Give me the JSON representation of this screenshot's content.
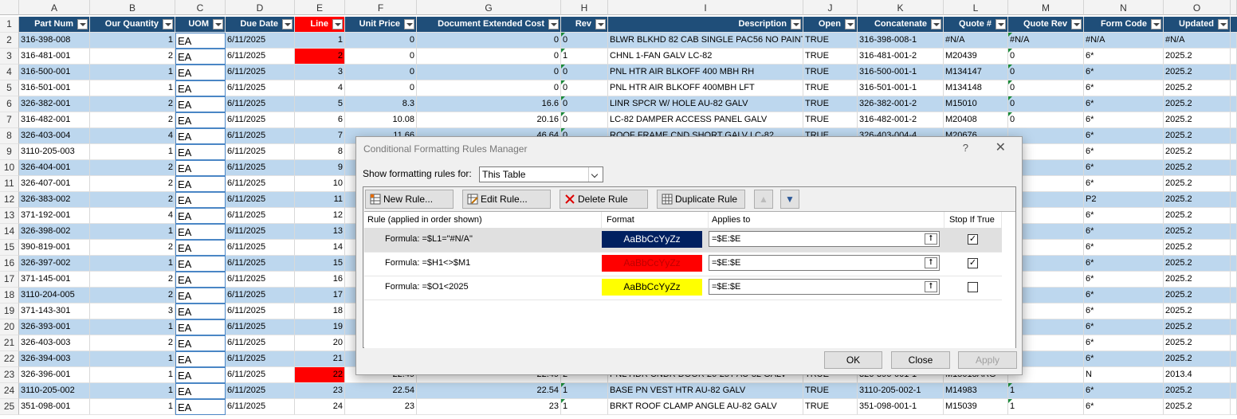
{
  "columns": [
    "A",
    "B",
    "C",
    "D",
    "E",
    "F",
    "G",
    "H",
    "I",
    "J",
    "K",
    "L",
    "M",
    "N",
    "O"
  ],
  "header_row": {
    "num": "1",
    "cells": [
      "Part Num",
      "Our Quantity",
      "UOM",
      "Due Date",
      "Line",
      "Unit Price",
      "Document Extended Cost",
      "Rev",
      "Description",
      "Open",
      "Concatenate",
      "Quote #",
      "Quote Rev",
      "Form Code",
      "Updated"
    ]
  },
  "rows": [
    {
      "num": "2",
      "cells": [
        "316-398-008",
        "1",
        "EA",
        "6/11/2025",
        "1",
        "0",
        "0",
        "0",
        "BLWR BLKHD 82 CAB SINGLE PAC56 NO PAINT",
        "TRUE",
        "316-398-008-1",
        "#N/A",
        "#N/A",
        "#N/A",
        "#N/A"
      ]
    },
    {
      "num": "3",
      "cells": [
        "316-481-001",
        "2",
        "EA",
        "6/11/2025",
        "2",
        "0",
        "0",
        "1",
        "CHNL 1-FAN GALV LC-82",
        "TRUE",
        "316-481-001-2",
        "M20439",
        "0",
        "6*",
        "2025.2"
      ]
    },
    {
      "num": "4",
      "cells": [
        "316-500-001",
        "1",
        "EA",
        "6/11/2025",
        "3",
        "0",
        "0",
        "0",
        "PNL HTR AIR BLKOFF 400 MBH RH",
        "TRUE",
        "316-500-001-1",
        "M134147",
        "0",
        "6*",
        "2025.2"
      ]
    },
    {
      "num": "5",
      "cells": [
        "316-501-001",
        "1",
        "EA",
        "6/11/2025",
        "4",
        "0",
        "0",
        "0",
        "PNL HTR AIR BLKOFF 400MBH LFT",
        "TRUE",
        "316-501-001-1",
        "M134148",
        "0",
        "6*",
        "2025.2"
      ]
    },
    {
      "num": "6",
      "cells": [
        "326-382-001",
        "2",
        "EA",
        "6/11/2025",
        "5",
        "8.3",
        "16.6",
        "0",
        "LINR SPCR W/ HOLE AU-82 GALV",
        "TRUE",
        "326-382-001-2",
        "M15010",
        "0",
        "6*",
        "2025.2"
      ]
    },
    {
      "num": "7",
      "cells": [
        "316-482-001",
        "2",
        "EA",
        "6/11/2025",
        "6",
        "10.08",
        "20.16",
        "0",
        "LC-82 DAMPER ACCESS PANEL GALV",
        "TRUE",
        "316-482-001-2",
        "M20408",
        "0",
        "6*",
        "2025.2"
      ]
    },
    {
      "num": "8",
      "cells": [
        "326-403-004",
        "4",
        "EA",
        "6/11/2025",
        "7",
        "11.66",
        "46.64",
        "0",
        "ROOF FRAME CND SHORT GALV LC-82",
        "TRUE",
        "326-403-004-4",
        "M20676",
        "",
        "6*",
        "2025.2"
      ]
    },
    {
      "num": "9",
      "cells": [
        "3110-205-003",
        "1",
        "EA",
        "6/11/2025",
        "8",
        "",
        "",
        "",
        "",
        "",
        "",
        "",
        "",
        "6*",
        "2025.2"
      ]
    },
    {
      "num": "10",
      "cells": [
        "326-404-001",
        "2",
        "EA",
        "6/11/2025",
        "9",
        "",
        "",
        "",
        "",
        "",
        "",
        "",
        "",
        "6*",
        "2025.2"
      ]
    },
    {
      "num": "11",
      "cells": [
        "326-407-001",
        "2",
        "EA",
        "6/11/2025",
        "10",
        "",
        "",
        "",
        "",
        "",
        "",
        "",
        "",
        "6*",
        "2025.2"
      ]
    },
    {
      "num": "12",
      "cells": [
        "326-383-002",
        "2",
        "EA",
        "6/11/2025",
        "11",
        "",
        "",
        "",
        "",
        "",
        "",
        "",
        "",
        "P2",
        "2025.2"
      ]
    },
    {
      "num": "13",
      "cells": [
        "371-192-001",
        "4",
        "EA",
        "6/11/2025",
        "12",
        "",
        "",
        "",
        "",
        "",
        "",
        "",
        "",
        "6*",
        "2025.2"
      ]
    },
    {
      "num": "14",
      "cells": [
        "326-398-002",
        "1",
        "EA",
        "6/11/2025",
        "13",
        "",
        "",
        "",
        "",
        "",
        "",
        "",
        "",
        "6*",
        "2025.2"
      ]
    },
    {
      "num": "15",
      "cells": [
        "390-819-001",
        "2",
        "EA",
        "6/11/2025",
        "14",
        "",
        "",
        "",
        "",
        "",
        "",
        "",
        "",
        "6*",
        "2025.2"
      ]
    },
    {
      "num": "16",
      "cells": [
        "326-397-002",
        "1",
        "EA",
        "6/11/2025",
        "15",
        "",
        "",
        "",
        "",
        "",
        "",
        "",
        "",
        "6*",
        "2025.2"
      ]
    },
    {
      "num": "17",
      "cells": [
        "371-145-001",
        "2",
        "EA",
        "6/11/2025",
        "16",
        "",
        "",
        "",
        "",
        "",
        "",
        "",
        "",
        "6*",
        "2025.2"
      ]
    },
    {
      "num": "18",
      "cells": [
        "3110-204-005",
        "2",
        "EA",
        "6/11/2025",
        "17",
        "",
        "",
        "",
        "",
        "",
        "",
        "",
        "",
        "6*",
        "2025.2"
      ]
    },
    {
      "num": "19",
      "cells": [
        "371-143-301",
        "3",
        "EA",
        "6/11/2025",
        "18",
        "",
        "",
        "",
        "",
        "",
        "",
        "",
        "",
        "6*",
        "2025.2"
      ]
    },
    {
      "num": "20",
      "cells": [
        "326-393-001",
        "1",
        "EA",
        "6/11/2025",
        "19",
        "",
        "",
        "",
        "",
        "",
        "",
        "",
        "",
        "6*",
        "2025.2"
      ]
    },
    {
      "num": "21",
      "cells": [
        "326-403-003",
        "2",
        "EA",
        "6/11/2025",
        "20",
        "",
        "",
        "",
        "",
        "",
        "",
        "",
        "",
        "6*",
        "2025.2"
      ]
    },
    {
      "num": "22",
      "cells": [
        "326-394-003",
        "1",
        "EA",
        "6/11/2025",
        "21",
        "",
        "",
        "",
        "",
        "",
        "",
        "",
        "",
        "6*",
        "2025.2"
      ]
    },
    {
      "num": "23",
      "cells": [
        "326-396-001",
        "1",
        "EA",
        "6/11/2025",
        "22",
        "22.49",
        "22.49",
        "2",
        "PNL HDR CNDR DOOR 26-25T AU-82 GALV",
        "TRUE",
        "326-396-001-1",
        "M15018ARG",
        "",
        "N",
        "2013.4"
      ]
    },
    {
      "num": "24",
      "cells": [
        "3110-205-002",
        "1",
        "EA",
        "6/11/2025",
        "23",
        "22.54",
        "22.54",
        "1",
        "BASE PN VEST HTR AU-82 GALV",
        "TRUE",
        "3110-205-002-1",
        "M14983",
        "1",
        "6*",
        "2025.2"
      ]
    },
    {
      "num": "25",
      "cells": [
        "351-098-001",
        "1",
        "EA",
        "6/11/2025",
        "24",
        "23",
        "23",
        "1",
        "BRKT ROOF CLAMP ANGLE AU-82 GALV",
        "TRUE",
        "351-098-001-1",
        "M15039",
        "1",
        "6*",
        "2025.2"
      ]
    }
  ],
  "dialog": {
    "title": "Conditional Formatting Rules Manager",
    "help": "?",
    "close": "✕",
    "show_label": "Show formatting rules for:",
    "show_value": "This Table",
    "toolbar": {
      "new": "New Rule...",
      "edit": "Edit Rule...",
      "delete": "Delete Rule",
      "duplicate": "Duplicate Rule",
      "up": "▲",
      "down": "▼"
    },
    "headers": {
      "rule": "Rule (applied in order shown)",
      "format": "Format",
      "applies": "Applies to",
      "stop": "Stop If True"
    },
    "rules": [
      {
        "formula": "Formula: =$L1=\"#N/A\"",
        "sample": "AaBbCcYyZz",
        "bg": "#002060",
        "fg": "#ffffff",
        "applies": "=$E:$E",
        "stop": true
      },
      {
        "formula": "Formula: =$H1<>$M1",
        "sample": "AaBbCcYyZz",
        "bg": "#ff0000",
        "fg": "#c00000",
        "applies": "=$E:$E",
        "stop": true
      },
      {
        "formula": "Formula: =$O1<2025",
        "sample": "AaBbCcYyZz",
        "bg": "#ffff00",
        "fg": "#000000",
        "applies": "=$E:$E",
        "stop": false
      }
    ],
    "buttons": {
      "ok": "OK",
      "close": "Close",
      "apply": "Apply"
    }
  },
  "colors": {
    "header_blue": "#1f4e79",
    "band_blue": "#bdd7ee",
    "highlight_red": "#ff0000"
  }
}
